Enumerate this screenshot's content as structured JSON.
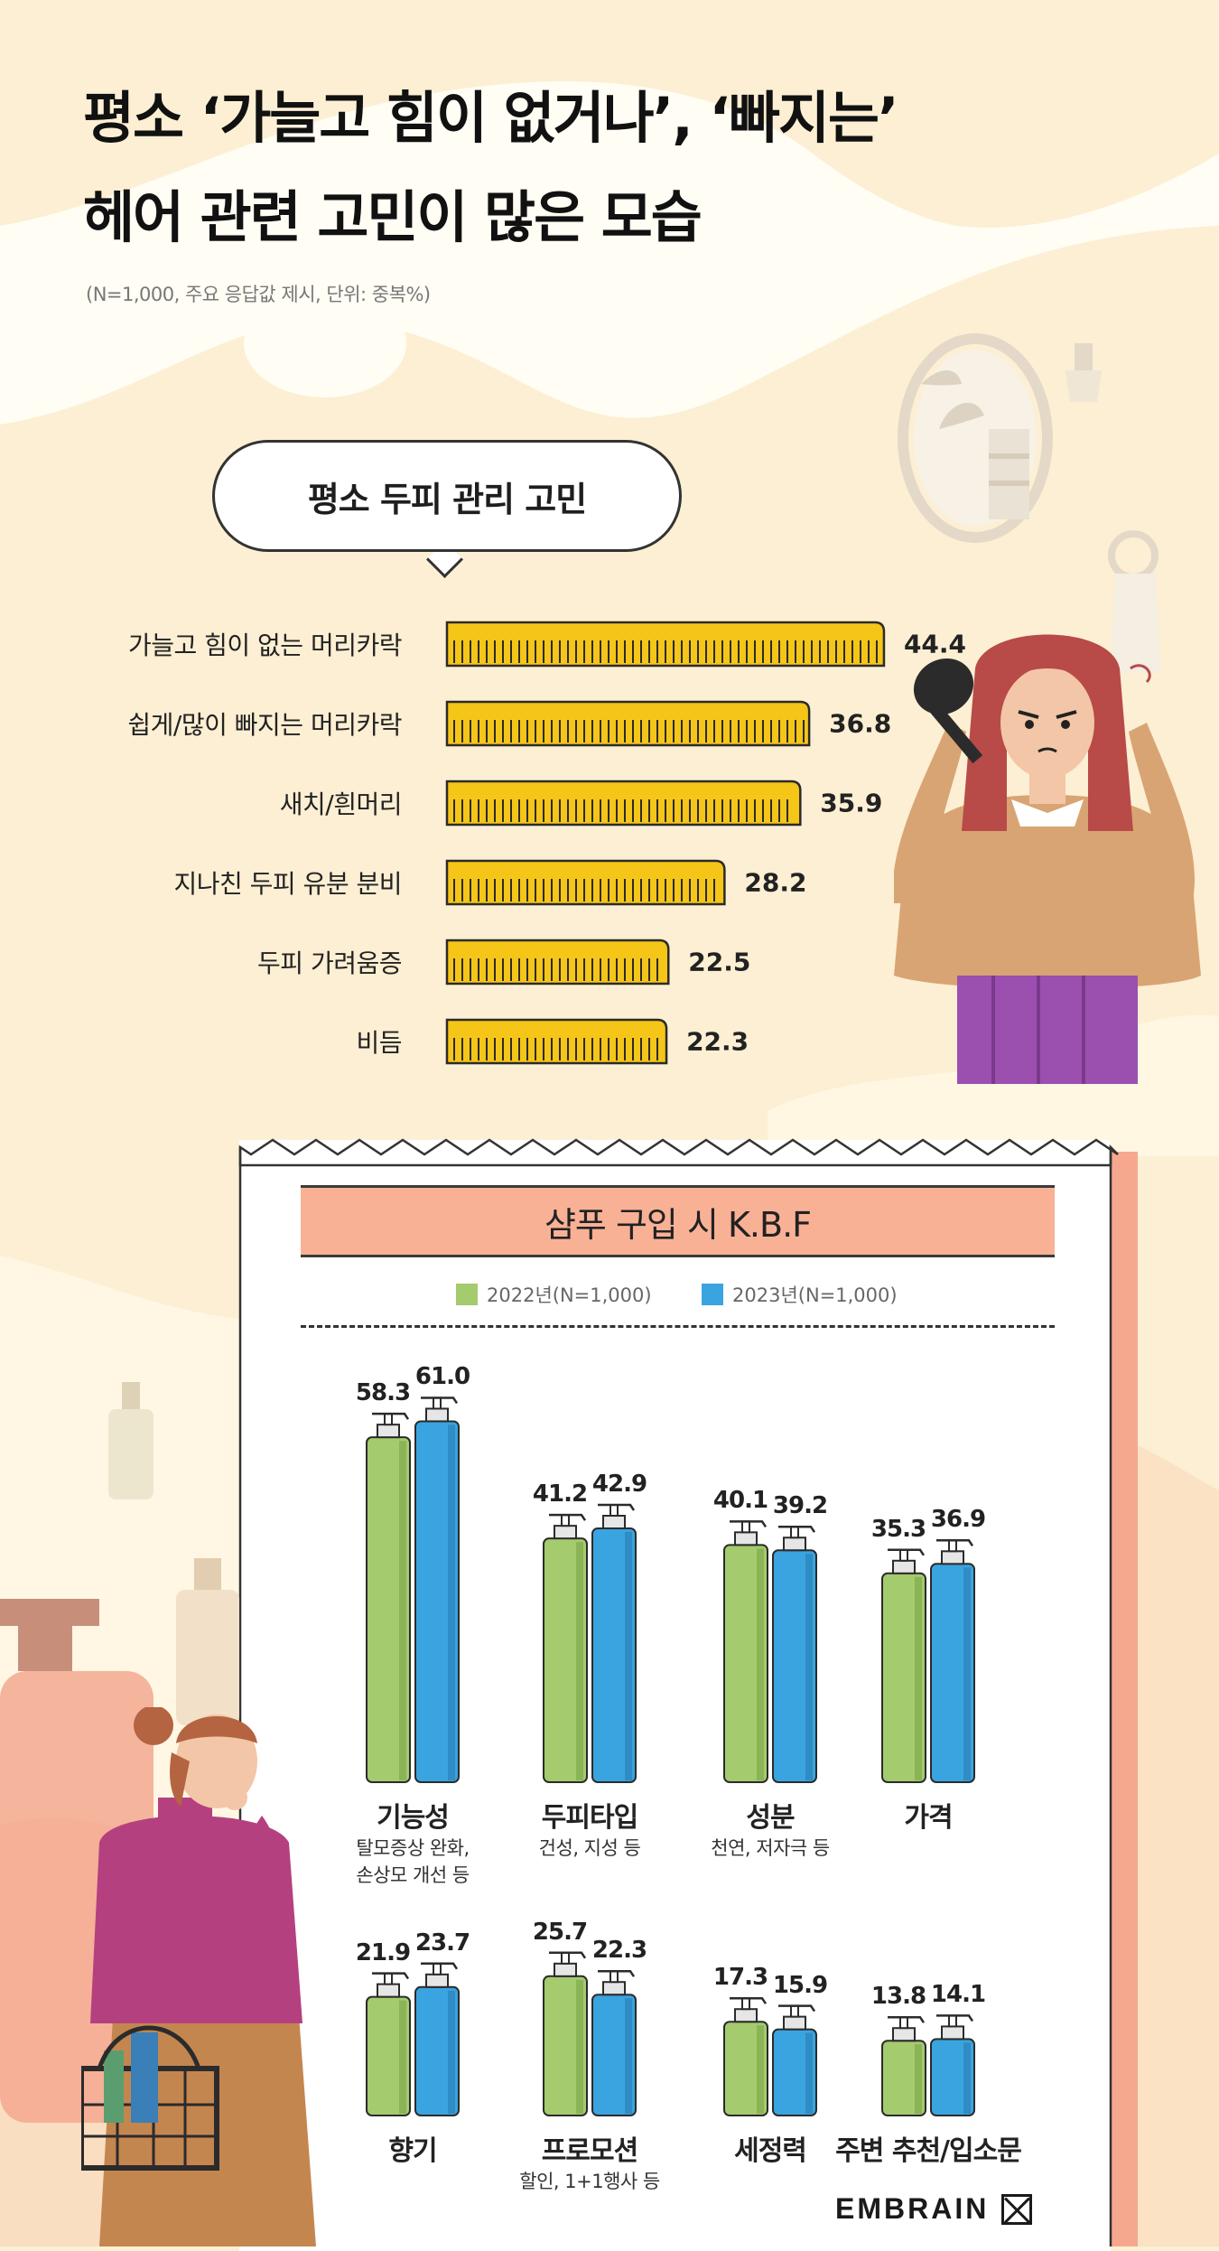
{
  "header": {
    "title_line1": "평소 ‘가늘고 힘이 없거나’, ‘빠지는’",
    "title_line2": "헤어 관련 고민이 많은 모습",
    "subtitle": "(N=1,000, 주요 응답값 제시, 단위: 중복%)"
  },
  "section1": {
    "bubble_title": "평소 두피 관리 고민"
  },
  "section2": {
    "banner_title": "샴푸 구입 시 K.B.F"
  },
  "colors": {
    "comb_bar": "#F5C518",
    "series_2022": "#A4CB6D",
    "series_2023": "#3AA4E0",
    "banner": "#F9B196"
  },
  "chart_data": [
    {
      "type": "bar",
      "orientation": "horizontal",
      "categories": [
        "가늘고 힘이 없는 머리카락",
        "쉽게/많이 빠지는 머리카락",
        "새치/흰머리",
        "지나친 두피 유분 분비",
        "두피 가려움증",
        "비듬"
      ],
      "values": [
        44.4,
        36.8,
        35.9,
        28.2,
        22.5,
        22.3
      ],
      "value_labels": [
        "44.4",
        "36.8",
        "35.9",
        "28.2",
        "22.5",
        "22.3"
      ]
    },
    {
      "type": "bar",
      "categories": [
        "기능성",
        "두피타입",
        "성분",
        "가격",
        "향기",
        "프로모션",
        "세정력",
        "주변 추천/입소문"
      ],
      "category_notes": [
        [
          "탈모증상 완화,",
          "손상모 개선 등"
        ],
        [
          "건성, 지성 등"
        ],
        [
          "천연, 저자극 등"
        ],
        [],
        [],
        [
          "할인, 1+1행사 등"
        ],
        [],
        []
      ],
      "series": [
        {
          "name": "2022년(N=1,000)",
          "values": [
            58.3,
            41.2,
            40.1,
            35.3,
            21.9,
            25.7,
            17.3,
            13.8
          ],
          "value_labels": [
            "58.3",
            "41.2",
            "40.1",
            "35.3",
            "21.9",
            "25.7",
            "17.3",
            "13.8"
          ]
        },
        {
          "name": "2023년(N=1,000)",
          "values": [
            61.0,
            42.9,
            39.2,
            36.9,
            23.7,
            22.3,
            15.9,
            14.1
          ],
          "value_labels": [
            "61.0",
            "42.9",
            "39.2",
            "36.9",
            "23.7",
            "22.3",
            "15.9",
            "14.1"
          ]
        }
      ],
      "legend_position": "top"
    }
  ],
  "footer": {
    "brand": "EMBRAIN",
    "logo_icon": "embrain-logo-icon"
  }
}
